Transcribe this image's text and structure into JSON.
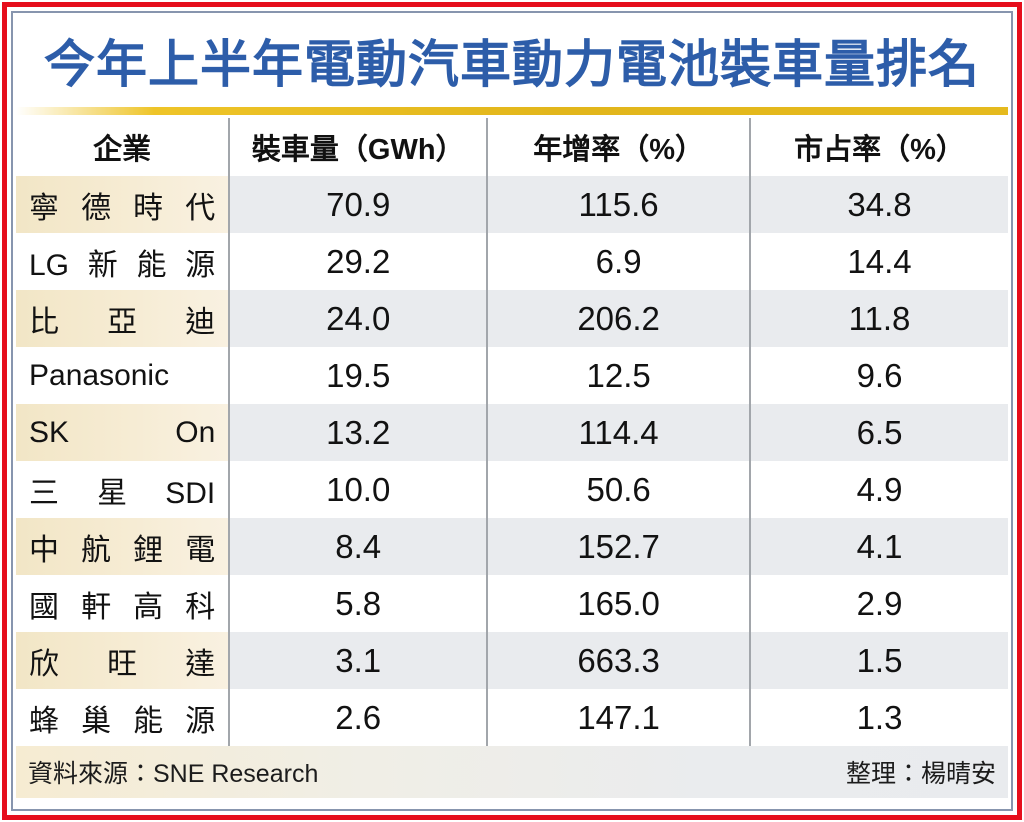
{
  "title": "今年上半年電動汽車動力電池裝車量排名",
  "colors": {
    "title_blue": "#2d5da9",
    "frame_red": "#e60e1c",
    "frame_inner_blue": "#8795ae",
    "accent_gold": "#e5ba1e",
    "row_shade_cream": "#f4e9cd",
    "row_shade_gray": "#e9ebee"
  },
  "table": {
    "columns": [
      "企業",
      "裝車量（GWh）",
      "年增率（%）",
      "市占率（%）"
    ],
    "rows": [
      {
        "company": "寧德時代",
        "volume_gwh": "70.9",
        "yoy_growth_pct": "115.6",
        "market_share_pct": "34.8"
      },
      {
        "company": "LG新能源",
        "volume_gwh": "29.2",
        "yoy_growth_pct": "6.9",
        "market_share_pct": "14.4"
      },
      {
        "company": "比亞迪",
        "volume_gwh": "24.0",
        "yoy_growth_pct": "206.2",
        "market_share_pct": "11.8"
      },
      {
        "company": "Panasonic",
        "volume_gwh": "19.5",
        "yoy_growth_pct": "12.5",
        "market_share_pct": "9.6"
      },
      {
        "company": "SK On",
        "volume_gwh": "13.2",
        "yoy_growth_pct": "114.4",
        "market_share_pct": "6.5"
      },
      {
        "company": "三星SDI",
        "volume_gwh": "10.0",
        "yoy_growth_pct": "50.6",
        "market_share_pct": "4.9"
      },
      {
        "company": "中航鋰電",
        "volume_gwh": "8.4",
        "yoy_growth_pct": "152.7",
        "market_share_pct": "4.1"
      },
      {
        "company": "國軒高科",
        "volume_gwh": "5.8",
        "yoy_growth_pct": "165.0",
        "market_share_pct": "2.9"
      },
      {
        "company": "欣旺達",
        "volume_gwh": "3.1",
        "yoy_growth_pct": "663.3",
        "market_share_pct": "1.5"
      },
      {
        "company": "蜂巢能源",
        "volume_gwh": "2.6",
        "yoy_growth_pct": "147.1",
        "market_share_pct": "1.3"
      }
    ]
  },
  "footer": {
    "source": "資料來源：SNE Research",
    "compiled_by": "整理：楊晴安"
  },
  "chart_data": {
    "type": "table",
    "title": "今年上半年電動汽車動力電池裝車量排名",
    "categories": [
      "寧德時代",
      "LG新能源",
      "比亞迪",
      "Panasonic",
      "SK On",
      "三星SDI",
      "中航鋰電",
      "國軒高科",
      "欣旺達",
      "蜂巢能源"
    ],
    "series": [
      {
        "name": "裝車量（GWh）",
        "values": [
          70.9,
          29.2,
          24.0,
          19.5,
          13.2,
          10.0,
          8.4,
          5.8,
          3.1,
          2.6
        ]
      },
      {
        "name": "年增率（%）",
        "values": [
          115.6,
          6.9,
          206.2,
          12.5,
          114.4,
          50.6,
          152.7,
          165.0,
          663.3,
          147.1
        ]
      },
      {
        "name": "市占率（%）",
        "values": [
          34.8,
          14.4,
          11.8,
          9.6,
          6.5,
          4.9,
          4.1,
          2.9,
          1.5,
          1.3
        ]
      }
    ],
    "source": "SNE Research",
    "compiled_by": "楊晴安"
  }
}
